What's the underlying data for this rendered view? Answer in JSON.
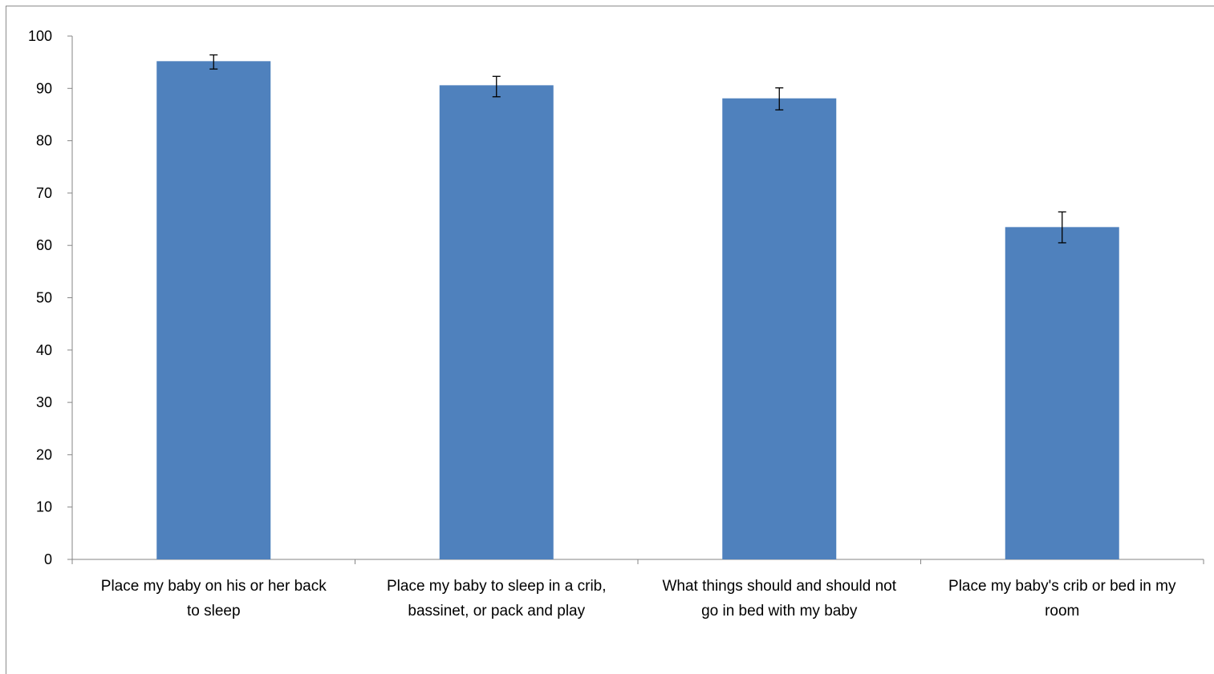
{
  "chart_data": {
    "type": "bar",
    "title": "",
    "xlabel": "",
    "ylabel": "",
    "ylim": [
      0,
      100
    ],
    "yticks": [
      0,
      10,
      20,
      30,
      40,
      50,
      60,
      70,
      80,
      90,
      100
    ],
    "categories": [
      [
        "Place my baby on his or her back",
        "to sleep"
      ],
      [
        "Place my baby to sleep in a crib,",
        "bassinet, or pack and play"
      ],
      [
        "What things should and should not",
        "go in bed with my baby"
      ],
      [
        "Place my baby's crib or bed in my",
        "room"
      ]
    ],
    "values": [
      95.2,
      90.6,
      88.1,
      63.5
    ],
    "error_low": [
      93.7,
      88.4,
      85.9,
      60.5
    ],
    "error_high": [
      96.4,
      92.3,
      90.1,
      66.4
    ],
    "bar_color": "#4f81bd",
    "axis_color": "#868686",
    "grid": false,
    "legend": "none"
  }
}
